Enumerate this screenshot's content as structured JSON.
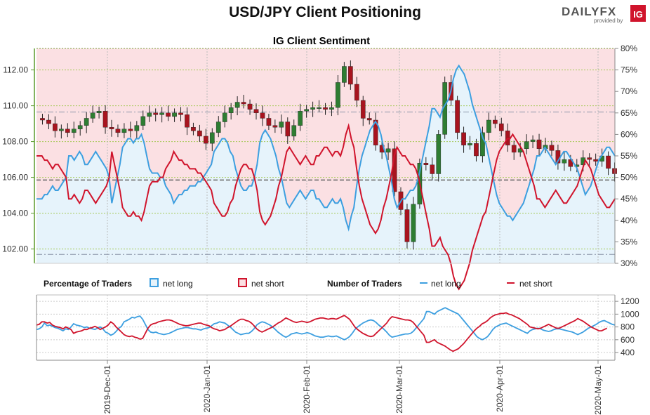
{
  "header": {
    "title": "USD/JPY Client Positioning",
    "brand": "DAILYFX",
    "brand_sub": "provided by",
    "brand_badge": "IG"
  },
  "colors": {
    "long": "#3d9fe0",
    "long_fill": "#e6f3fb",
    "short": "#d0142c",
    "short_fill": "#fbe0e3",
    "up_candle": "#2e7d32",
    "down_candle": "#a8141f",
    "grid": "#a7c95a"
  },
  "chart_data": [
    {
      "type": "candlestick-with-area",
      "title": "IG Client Sentiment",
      "left_axis": {
        "ticks": [
          "102.00",
          "104.00",
          "106.00",
          "108.00",
          "110.00",
          "112.00"
        ],
        "range": [
          101.2,
          113.2
        ]
      },
      "right_axis": {
        "ticks": [
          "30%",
          "35%",
          "40%",
          "45%",
          "50%",
          "55%",
          "60%",
          "65%",
          "70%",
          "75%",
          "80%"
        ],
        "range": [
          30,
          80
        ]
      },
      "reference_lines": [
        {
          "axis": "left",
          "value": 109.65
        },
        {
          "axis": "left",
          "value": 105.85
        },
        {
          "axis": "left",
          "value": 101.7
        }
      ],
      "price_close": [
        109.2,
        109.0,
        108.6,
        108.7,
        108.5,
        108.7,
        108.9,
        109.3,
        109.6,
        109.7,
        108.8,
        108.7,
        108.5,
        108.7,
        108.6,
        108.9,
        109.4,
        109.6,
        109.5,
        109.6,
        109.4,
        109.6,
        109.5,
        108.8,
        108.6,
        108.3,
        107.9,
        108.5,
        109.1,
        109.6,
        109.9,
        110.2,
        110.1,
        109.8,
        109.6,
        109.3,
        108.9,
        108.8,
        109.1,
        108.3,
        108.9,
        109.7,
        109.8,
        109.9,
        109.9,
        109.8,
        109.9,
        111.3,
        112.2,
        111.2,
        110.3,
        109.3,
        109.2,
        107.8,
        107.4,
        107.6,
        105.2,
        104.2,
        102.4,
        104.5,
        106.8,
        106.7,
        106.2,
        108.4,
        111.3,
        110.3,
        108.5,
        107.8,
        107.9,
        107.2,
        108.5,
        109.2,
        109.0,
        108.6,
        107.8,
        107.4,
        107.6,
        108.0,
        108.1,
        107.6,
        107.8,
        107.5,
        106.8,
        107.0,
        106.6,
        106.7,
        107.1,
        107.0,
        106.9,
        107.2,
        106.5,
        106.2
      ]
    },
    {
      "type": "line",
      "title": "Number of Traders",
      "y_ticks": [
        "400",
        "600",
        "800",
        "1000",
        "1200"
      ],
      "ylim": [
        280,
        1300
      ],
      "x_ticks": [
        "2019-Dec-01",
        "2020-Jan-01",
        "2020-Feb-01",
        "2020-Mar-01",
        "2020-Apr-01",
        "2020-May-01"
      ]
    }
  ],
  "legend": {
    "pct_title": "Percentage of Traders",
    "num_title": "Number of Traders",
    "net_long": "net long",
    "net_short": "net short"
  },
  "series": {
    "net_long_pct": [
      45,
      45,
      45,
      46,
      46,
      47,
      48,
      47,
      47,
      48,
      49,
      50,
      55,
      55,
      54,
      55,
      56,
      55,
      53,
      53,
      54,
      55,
      56,
      55,
      54,
      53,
      52,
      50,
      44,
      47,
      50,
      53,
      57,
      58,
      59,
      59,
      58,
      59,
      59,
      60,
      58,
      55,
      52,
      51,
      51,
      51,
      50,
      50,
      48,
      47,
      46,
      44,
      45,
      46,
      46,
      47,
      47,
      48,
      48,
      48,
      49,
      49,
      50,
      51,
      52,
      53,
      56,
      57,
      58,
      59,
      59,
      58,
      56,
      55,
      52,
      50,
      48,
      47,
      47,
      48,
      48,
      50,
      53,
      58,
      60,
      61,
      60,
      59,
      57,
      55,
      52,
      50,
      47,
      44,
      43,
      44,
      45,
      46,
      47,
      46,
      45,
      46,
      47,
      47,
      45,
      45,
      44,
      43,
      43,
      44,
      45,
      44,
      44,
      45,
      43,
      40,
      38,
      41,
      43,
      48,
      52,
      55,
      57,
      59,
      61,
      62,
      63,
      62,
      60,
      57,
      55,
      52,
      49,
      45,
      43,
      44,
      45,
      45,
      46,
      47,
      47,
      48,
      50,
      53,
      56,
      59,
      62,
      66,
      66,
      65,
      64,
      66,
      67,
      68,
      70,
      73,
      75,
      76,
      75,
      74,
      72,
      70,
      67,
      65,
      63,
      61,
      59,
      58,
      55,
      52,
      49,
      46,
      44,
      43,
      42,
      41,
      41,
      40,
      41,
      42,
      43,
      44,
      46,
      48,
      50,
      52,
      55,
      55,
      56,
      57,
      56,
      55,
      54,
      53,
      54,
      55,
      56,
      56,
      55,
      54,
      53,
      52,
      50,
      48,
      46,
      47,
      48,
      50,
      52,
      54,
      55,
      56,
      57,
      57,
      56,
      55
    ],
    "net_short_pct": [
      55,
      55,
      55,
      54,
      54,
      53,
      52,
      53,
      53,
      52,
      51,
      50,
      45,
      45,
      46,
      45,
      44,
      45,
      47,
      47,
      46,
      45,
      44,
      45,
      46,
      47,
      48,
      50,
      56,
      53,
      50,
      47,
      43,
      42,
      41,
      41,
      42,
      41,
      41,
      40,
      42,
      45,
      48,
      49,
      49,
      49,
      50,
      50,
      52,
      53,
      54,
      56,
      55,
      54,
      54,
      53,
      53,
      52,
      52,
      52,
      51,
      51,
      50,
      49,
      48,
      47,
      44,
      43,
      42,
      41,
      41,
      42,
      44,
      45,
      48,
      50,
      52,
      53,
      53,
      52,
      52,
      50,
      47,
      42,
      40,
      39,
      40,
      41,
      43,
      45,
      48,
      50,
      53,
      56,
      57,
      56,
      55,
      54,
      53,
      54,
      55,
      54,
      53,
      53,
      55,
      55,
      56,
      57,
      57,
      56,
      55,
      56,
      56,
      55,
      57,
      60,
      62,
      59,
      57,
      52,
      48,
      45,
      43,
      41,
      39,
      38,
      37,
      38,
      40,
      43,
      45,
      48,
      51,
      55,
      57,
      56,
      55,
      55,
      54,
      53,
      53,
      52,
      50,
      47,
      44,
      41,
      38,
      34,
      34,
      35,
      36,
      34,
      33,
      32,
      30,
      27,
      25,
      24,
      25,
      26,
      28,
      30,
      33,
      35,
      37,
      39,
      41,
      42,
      45,
      48,
      51,
      54,
      56,
      57,
      58,
      59,
      59,
      60,
      59,
      58,
      57,
      56,
      54,
      52,
      50,
      48,
      45,
      45,
      44,
      43,
      44,
      45,
      46,
      47,
      46,
      45,
      44,
      44,
      45,
      46,
      47,
      48,
      50,
      52,
      54,
      53,
      52,
      50,
      48,
      46,
      45,
      44,
      43,
      43,
      44,
      45
    ],
    "net_long_count": [
      760,
      770,
      800,
      860,
      820,
      830,
      810,
      790,
      780,
      760,
      740,
      770,
      760,
      800,
      850,
      830,
      820,
      810,
      790,
      800,
      780,
      770,
      760,
      780,
      800,
      770,
      720,
      700,
      670,
      690,
      730,
      780,
      810,
      880,
      900,
      920,
      950,
      940,
      960,
      970,
      920,
      840,
      760,
      720,
      710,
      720,
      700,
      690,
      680,
      690,
      700,
      720,
      740,
      760,
      770,
      780,
      790,
      790,
      780,
      770,
      770,
      760,
      750,
      770,
      780,
      790,
      820,
      850,
      860,
      880,
      870,
      860,
      830,
      800,
      760,
      720,
      700,
      680,
      690,
      700,
      700,
      730,
      770,
      830,
      860,
      880,
      870,
      850,
      830,
      800,
      760,
      720,
      690,
      660,
      640,
      660,
      690,
      700,
      710,
      700,
      690,
      700,
      710,
      700,
      680,
      660,
      650,
      640,
      640,
      650,
      660,
      650,
      650,
      660,
      640,
      620,
      600,
      620,
      650,
      700,
      760,
      800,
      830,
      860,
      880,
      900,
      910,
      900,
      870,
      830,
      800,
      760,
      720,
      670,
      640,
      650,
      660,
      670,
      680,
      690,
      690,
      700,
      730,
      780,
      830,
      880,
      930,
      1040,
      1040,
      1020,
      1000,
      1040,
      1060,
      1080,
      1100,
      1080,
      1060,
      1040,
      1020,
      1000,
      950,
      900,
      850,
      800,
      750,
      700,
      650,
      620,
      600,
      620,
      650,
      700,
      760,
      800,
      820,
      840,
      850,
      860,
      840,
      820,
      800,
      780,
      760,
      740,
      720,
      700,
      740,
      760,
      770,
      780,
      770,
      750,
      740,
      730,
      740,
      760,
      770,
      770,
      760,
      750,
      740,
      730,
      720,
      700,
      680,
      700,
      720,
      750,
      780,
      800,
      820,
      840,
      870,
      890,
      900,
      880,
      860,
      840,
      830
    ],
    "net_short_count": [
      830,
      840,
      880,
      880,
      860,
      870,
      830,
      810,
      800,
      790,
      770,
      800,
      780,
      760,
      700,
      720,
      730,
      740,
      760,
      760,
      780,
      790,
      810,
      790,
      760,
      780,
      800,
      830,
      880,
      850,
      800,
      760,
      720,
      680,
      660,
      650,
      660,
      640,
      630,
      610,
      620,
      700,
      780,
      830,
      850,
      860,
      880,
      890,
      900,
      910,
      910,
      900,
      880,
      860,
      840,
      830,
      820,
      820,
      830,
      840,
      850,
      860,
      860,
      840,
      830,
      820,
      790,
      770,
      760,
      740,
      750,
      760,
      790,
      810,
      840,
      870,
      900,
      920,
      920,
      900,
      890,
      860,
      820,
      770,
      740,
      720,
      740,
      760,
      780,
      800,
      830,
      860,
      880,
      910,
      940,
      920,
      900,
      880,
      870,
      880,
      890,
      880,
      870,
      880,
      900,
      920,
      930,
      940,
      940,
      930,
      920,
      930,
      930,
      920,
      940,
      960,
      980,
      950,
      920,
      860,
      800,
      760,
      730,
      700,
      680,
      660,
      650,
      660,
      700,
      740,
      780,
      820,
      860,
      920,
      960,
      950,
      940,
      930,
      920,
      910,
      910,
      900,
      870,
      820,
      770,
      720,
      670,
      560,
      560,
      580,
      600,
      560,
      540,
      520,
      500,
      470,
      440,
      420,
      440,
      460,
      500,
      540,
      590,
      640,
      690,
      740,
      780,
      810,
      850,
      870,
      900,
      940,
      970,
      990,
      1000,
      1010,
      1010,
      1020,
      1000,
      990,
      970,
      950,
      930,
      900,
      870,
      840,
      800,
      790,
      780,
      770,
      780,
      800,
      820,
      840,
      820,
      800,
      780,
      780,
      800,
      820,
      840,
      860,
      880,
      900,
      930,
      910,
      890,
      860,
      830,
      800,
      780,
      760,
      740,
      740,
      760,
      780
    ]
  }
}
